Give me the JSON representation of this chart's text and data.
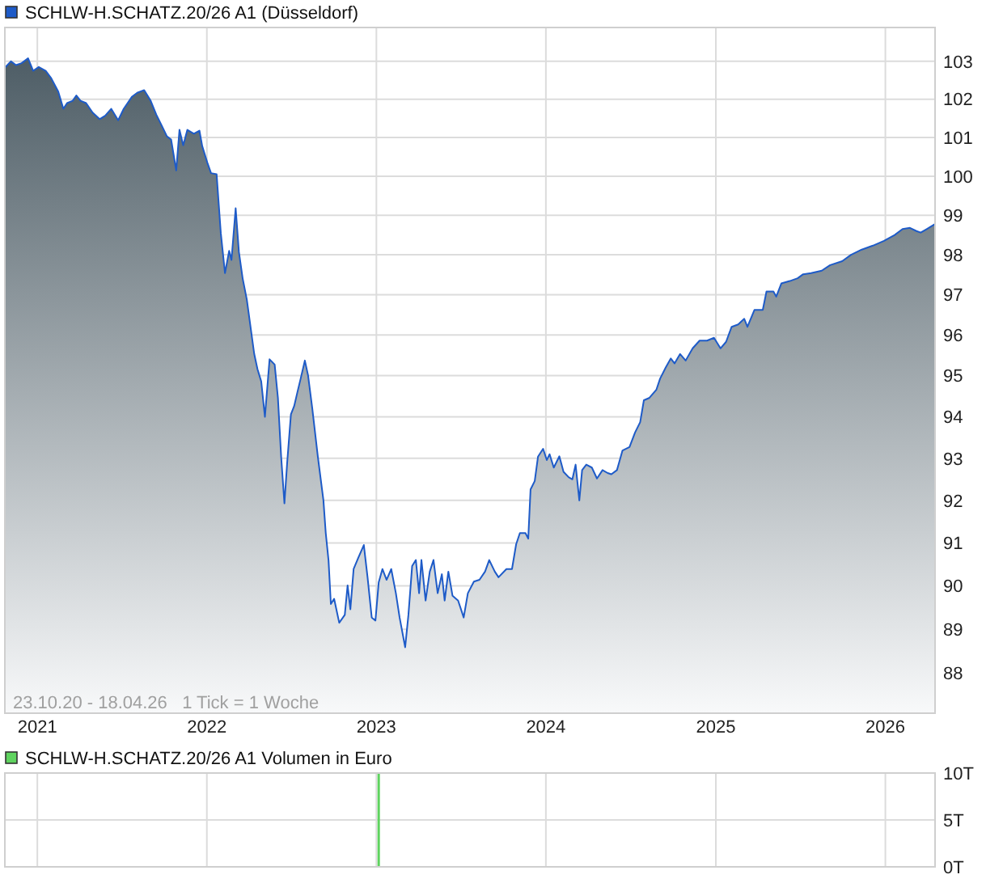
{
  "chart_data": [
    {
      "type": "area",
      "legend": "top left",
      "grid": true,
      "log": true,
      "xlim": [
        "2020-10-23",
        "2026-04-18"
      ],
      "xticks": [
        "2021",
        "2022",
        "2023",
        "2024",
        "2025",
        "2026"
      ],
      "ylim": [
        87.1,
        103.9
      ],
      "yticks": [
        88,
        89,
        90,
        91,
        92,
        93,
        94,
        95,
        96,
        97,
        98,
        99,
        100,
        101,
        102,
        103
      ],
      "annotations": [
        "23.10.20 - 18.04.26   1 Tick = 1 Woche"
      ],
      "x": [
        "2020-10-23",
        "2020-11-05",
        "2020-11-16",
        "2020-11-28",
        "2020-12-12",
        "2020-12-23",
        "2021-01-04",
        "2021-01-19",
        "2021-01-31",
        "2021-02-15",
        "2021-02-26",
        "2021-03-06",
        "2021-03-18",
        "2021-03-26",
        "2021-04-04",
        "2021-04-16",
        "2021-04-30",
        "2021-05-15",
        "2021-05-27",
        "2021-06-09",
        "2021-06-24",
        "2021-07-06",
        "2021-07-24",
        "2021-08-04",
        "2021-08-19",
        "2021-09-02",
        "2021-09-14",
        "2021-09-25",
        "2021-10-07",
        "2021-10-16",
        "2021-10-27",
        "2021-11-03",
        "2021-11-11",
        "2021-11-20",
        "2021-12-04",
        "2021-12-16",
        "2021-12-22",
        "2022-01-02",
        "2022-01-10",
        "2022-01-22",
        "2022-01-31",
        "2022-02-09",
        "2022-02-18",
        "2022-02-23",
        "2022-03-04",
        "2022-03-11",
        "2022-03-19",
        "2022-03-28",
        "2022-04-05",
        "2022-04-13",
        "2022-04-20",
        "2022-04-28",
        "2022-05-06",
        "2022-05-16",
        "2022-05-27",
        "2022-06-03",
        "2022-06-10",
        "2022-06-17",
        "2022-06-23",
        "2022-07-01",
        "2022-07-08",
        "2022-07-15",
        "2022-07-22",
        "2022-07-31",
        "2022-08-07",
        "2022-08-16",
        "2022-08-28",
        "2022-09-09",
        "2022-09-14",
        "2022-09-20",
        "2022-09-25",
        "2022-10-02",
        "2022-10-13",
        "2022-10-25",
        "2022-10-31",
        "2022-11-06",
        "2022-11-13",
        "2022-11-23",
        "2022-12-05",
        "2022-12-13",
        "2022-12-22",
        "2022-12-30",
        "2023-01-06",
        "2023-01-14",
        "2023-01-23",
        "2023-02-02",
        "2023-02-12",
        "2023-02-20",
        "2023-03-04",
        "2023-03-11",
        "2023-03-19",
        "2023-03-27",
        "2023-04-03",
        "2023-04-08",
        "2023-04-17",
        "2023-04-26",
        "2023-05-04",
        "2023-05-13",
        "2023-05-22",
        "2023-05-28",
        "2023-06-05",
        "2023-06-14",
        "2023-06-26",
        "2023-07-08",
        "2023-07-17",
        "2023-07-30",
        "2023-08-11",
        "2023-08-23",
        "2023-09-01",
        "2023-09-13",
        "2023-09-21",
        "2023-10-08",
        "2023-10-20",
        "2023-10-29",
        "2023-11-06",
        "2023-11-18",
        "2023-11-24",
        "2023-11-29",
        "2023-12-08",
        "2023-12-15",
        "2023-12-26",
        "2024-01-03",
        "2024-01-09",
        "2024-01-18",
        "2024-01-30",
        "2024-02-08",
        "2024-02-19",
        "2024-02-27",
        "2024-03-05",
        "2024-03-13",
        "2024-03-19",
        "2024-03-28",
        "2024-04-09",
        "2024-04-20",
        "2024-05-02",
        "2024-05-13",
        "2024-05-21",
        "2024-06-02",
        "2024-06-14",
        "2024-06-29",
        "2024-07-11",
        "2024-07-22",
        "2024-07-30",
        "2024-08-11",
        "2024-08-26",
        "2024-09-03",
        "2024-09-15",
        "2024-09-26",
        "2024-10-04",
        "2024-10-16",
        "2024-10-28",
        "2024-11-12",
        "2024-11-27",
        "2024-12-13",
        "2024-12-28",
        "2025-01-11",
        "2025-01-23",
        "2025-02-04",
        "2025-02-18",
        "2025-03-03",
        "2025-03-10",
        "2025-03-25",
        "2025-04-12",
        "2025-04-20",
        "2025-05-05",
        "2025-05-11",
        "2025-05-22",
        "2025-06-09",
        "2025-06-26",
        "2025-07-08",
        "2025-07-25",
        "2025-08-17",
        "2025-09-04",
        "2025-09-30",
        "2025-10-19",
        "2025-11-11",
        "2025-12-05",
        "2025-12-29",
        "2026-01-21",
        "2026-02-07",
        "2026-02-23",
        "2026-03-09",
        "2026-03-18",
        "2026-03-31",
        "2026-04-17"
      ],
      "series": [
        {
          "name": "SCHLW-H.SCHATZ.20/26 A1 (Düsseldorf)",
          "color": "#1e5bc8",
          "values": [
            102.83,
            103.0,
            102.9,
            102.95,
            103.08,
            102.75,
            102.85,
            102.75,
            102.55,
            102.2,
            101.75,
            101.9,
            101.96,
            102.1,
            101.96,
            101.9,
            101.65,
            101.48,
            101.57,
            101.75,
            101.45,
            101.75,
            102.07,
            102.17,
            102.24,
            101.96,
            101.6,
            101.33,
            101.03,
            100.95,
            100.15,
            101.2,
            100.8,
            101.2,
            101.1,
            101.18,
            100.78,
            100.35,
            100.08,
            100.05,
            98.55,
            97.54,
            98.1,
            97.87,
            99.18,
            98.07,
            97.41,
            96.88,
            96.2,
            95.53,
            95.16,
            94.86,
            94.0,
            95.4,
            95.27,
            94.46,
            93.03,
            91.93,
            92.91,
            94.06,
            94.26,
            94.6,
            94.93,
            95.37,
            95.0,
            94.2,
            93.04,
            92.0,
            91.23,
            90.59,
            89.58,
            89.7,
            89.15,
            89.33,
            90.01,
            89.46,
            90.39,
            90.65,
            90.95,
            90.2,
            89.27,
            89.2,
            90.08,
            90.39,
            90.14,
            90.39,
            89.83,
            89.27,
            88.59,
            89.33,
            90.46,
            90.6,
            89.83,
            90.6,
            89.66,
            90.33,
            90.6,
            89.83,
            90.27,
            89.66,
            90.33,
            89.77,
            89.66,
            89.27,
            89.83,
            90.1,
            90.14,
            90.33,
            90.6,
            90.33,
            90.2,
            90.39,
            90.39,
            90.97,
            91.23,
            91.23,
            91.1,
            92.26,
            92.46,
            93.04,
            93.23,
            92.96,
            93.1,
            92.78,
            93.05,
            92.68,
            92.55,
            92.5,
            92.85,
            92.0,
            92.72,
            92.85,
            92.78,
            92.52,
            92.72,
            92.65,
            92.62,
            92.72,
            93.19,
            93.27,
            93.62,
            93.87,
            94.4,
            94.46,
            94.66,
            94.93,
            95.2,
            95.42,
            95.3,
            95.53,
            95.37,
            95.67,
            95.86,
            95.86,
            95.93,
            95.67,
            95.83,
            96.2,
            96.26,
            96.4,
            96.2,
            96.62,
            96.62,
            97.08,
            97.08,
            96.95,
            97.28,
            97.34,
            97.41,
            97.51,
            97.54,
            97.6,
            97.74,
            97.84,
            98.0,
            98.13,
            98.23,
            98.35,
            98.5,
            98.65,
            98.68,
            98.6,
            98.56,
            98.65,
            98.77
          ]
        }
      ]
    },
    {
      "type": "bar",
      "legend": "top left",
      "grid": true,
      "tick_labels": "y",
      "xlim": [
        "2020-10-23",
        "2026-04-18"
      ],
      "xticks": [
        "2021",
        "2022",
        "2023",
        "2024",
        "2025",
        "2026"
      ],
      "ylim": [
        0,
        10
      ],
      "yticks": [
        {
          "value": 0,
          "label": "0T"
        },
        {
          "value": 5,
          "label": "5T"
        },
        {
          "value": 10,
          "label": "10T"
        }
      ],
      "x": [
        "2023-01-06"
      ],
      "series": [
        {
          "name": "SCHLW-H.SCHATZ.20/26 A1 Volumen in Euro",
          "color": "#5fd35f",
          "values": [
            10
          ]
        }
      ]
    }
  ]
}
